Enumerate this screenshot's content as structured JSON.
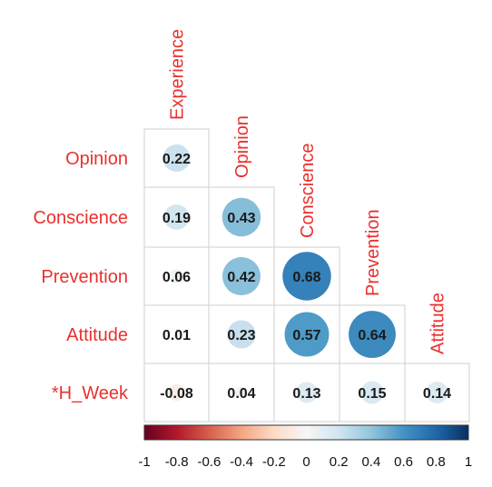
{
  "chart_data": {
    "type": "heatmap",
    "title": "",
    "column_labels": [
      "Experience",
      "Opinion",
      "Conscience",
      "Prevention",
      "Attitude"
    ],
    "row_labels": [
      "Opinion",
      "Conscience",
      "Prevention",
      "Attitude",
      "*H_Week"
    ],
    "cells": [
      [
        0.22
      ],
      [
        0.19,
        0.43
      ],
      [
        0.06,
        0.42,
        0.68
      ],
      [
        0.01,
        0.23,
        0.57,
        0.64
      ],
      [
        -0.08,
        0.04,
        0.13,
        0.15,
        0.14
      ]
    ],
    "cell_labels": [
      [
        "0.22"
      ],
      [
        "0.19",
        "0.43"
      ],
      [
        "0.06",
        "0.42",
        "0.68"
      ],
      [
        "0.01",
        "0.23",
        "0.57",
        "0.64"
      ],
      [
        "-0.08",
        "0.04",
        "0.13",
        "0.15",
        "0.14"
      ]
    ],
    "colorbar": {
      "range": [
        -1,
        1
      ],
      "ticks": [
        "-1",
        "-0.8",
        "-0.6",
        "-0.4",
        "-0.2",
        "0",
        "0.2",
        "0.4",
        "0.6",
        "0.8",
        "1"
      ],
      "colors": [
        "#67001f",
        "#b2182b",
        "#d6604d",
        "#f4a582",
        "#fddbc7",
        "#f7f7f7",
        "#d1e5f0",
        "#92c5de",
        "#4393c3",
        "#2166ac",
        "#053061"
      ]
    },
    "label_color": "#e8312e",
    "grid": true,
    "layout": "lower-triangle"
  }
}
